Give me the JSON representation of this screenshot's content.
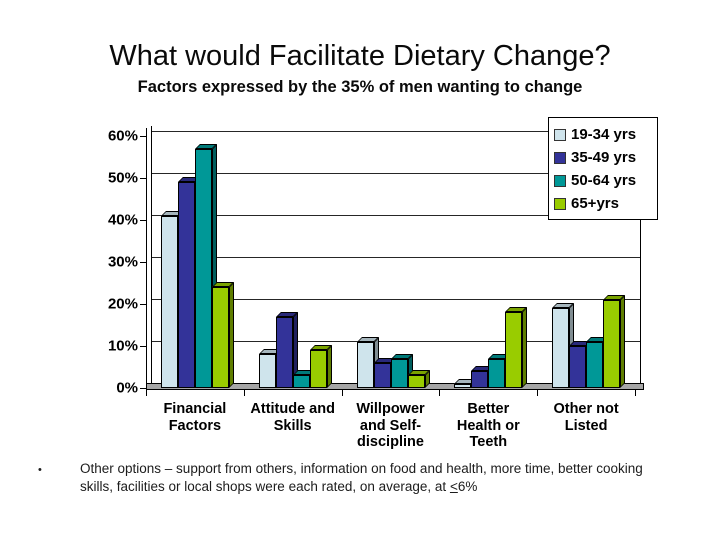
{
  "slide": {
    "title": "What would Facilitate Dietary Change?",
    "subtitle": "Factors expressed by the 35% of men wanting to change",
    "bullet": {
      "marker": "•",
      "text_pre": "Other options – support from others, information on food and health, more time, better cooking skills, facilities or local shops were each rated, on average, at ",
      "underlined": "<",
      "text_post": "6%"
    }
  },
  "chart_data": {
    "type": "bar",
    "style": "3d-clustered-column",
    "title": "Factors expressed by the 35% of men wanting to change",
    "xlabel": "",
    "ylabel": "",
    "ylim": [
      0,
      60
    ],
    "ytick_step": 10,
    "ytick_labels": [
      "0%",
      "10%",
      "20%",
      "30%",
      "40%",
      "50%",
      "60%"
    ],
    "grid": true,
    "legend_position": "top-right",
    "categories": [
      "Financial Factors",
      "Attitude and Skills",
      "Willpower and Self-discipline",
      "Better Health or Teeth",
      "Other not Listed"
    ],
    "categories_display": [
      [
        "Financial",
        "Factors"
      ],
      [
        "Attitude and",
        "Skills"
      ],
      [
        "Willpower",
        "and Self-",
        "discipline"
      ],
      [
        "Better",
        "Health or",
        "Teeth"
      ],
      [
        "Other not",
        "Listed"
      ]
    ],
    "series": [
      {
        "name": "19-34 yrs",
        "color": "#cfe4ec",
        "values": [
          41,
          8,
          11,
          1,
          19
        ]
      },
      {
        "name": "35-49 yrs",
        "color": "#333399",
        "values": [
          49,
          17,
          6,
          4,
          10
        ]
      },
      {
        "name": "50-64 yrs",
        "color": "#009897",
        "values": [
          57,
          3,
          7,
          7,
          11
        ]
      },
      {
        "name": "65+yrs",
        "color": "#99cc00",
        "values": [
          24,
          9,
          3,
          18,
          21
        ]
      }
    ]
  }
}
